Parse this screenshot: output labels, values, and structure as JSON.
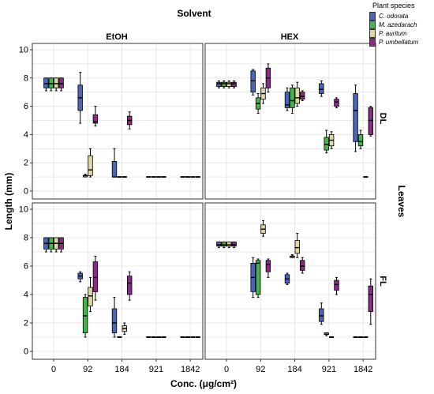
{
  "chart_data": {
    "type": "boxplot",
    "title": "Solvent",
    "xlabel": "Conc. (μg/cm²)",
    "ylabel": "Length (mm)",
    "row_group_label": "Leaves",
    "columns": [
      "EtOH",
      "HEX"
    ],
    "rows": [
      "DL",
      "FL"
    ],
    "categories": [
      "0",
      "92",
      "184",
      "921",
      "1842"
    ],
    "ylim": [
      0,
      10
    ],
    "yticks": [
      0,
      2,
      4,
      6,
      8,
      10
    ],
    "grid": true,
    "legend": {
      "title": "Plant species",
      "position": "top-right",
      "entries": [
        {
          "name": "C. odorata",
          "color": "#4b64b4"
        },
        {
          "name": "M. azedarach",
          "color": "#45b54a"
        },
        {
          "name": "P. auritum",
          "color": "#ded7a6"
        },
        {
          "name": "P. umbellatum",
          "color": "#892a85"
        }
      ]
    },
    "panels": [
      {
        "row": "DL",
        "column": "EtOH",
        "boxes": [
          {
            "category": "0",
            "series": "C. odorata",
            "min": 7.1,
            "q1": 7.3,
            "median": 7.6,
            "q3": 8.0,
            "max": 8.0
          },
          {
            "category": "0",
            "series": "M. azedarach",
            "min": 7.1,
            "q1": 7.3,
            "median": 7.6,
            "q3": 8.0,
            "max": 8.0
          },
          {
            "category": "0",
            "series": "P. auritum",
            "min": 7.1,
            "q1": 7.3,
            "median": 7.6,
            "q3": 8.0,
            "max": 8.0
          },
          {
            "category": "0",
            "series": "P. umbellatum",
            "min": 7.1,
            "q1": 7.3,
            "median": 7.6,
            "q3": 8.0,
            "max": 8.0
          },
          {
            "category": "92",
            "series": "C. odorata",
            "min": 4.8,
            "q1": 5.7,
            "median": 6.6,
            "q3": 7.5,
            "max": 8.4
          },
          {
            "category": "92",
            "series": "M. azedarach",
            "min": 1.0,
            "q1": 1.0,
            "median": 1.1,
            "q3": 1.1,
            "max": 1.2
          },
          {
            "category": "92",
            "series": "P. auritum",
            "min": 1.0,
            "q1": 1.1,
            "median": 1.5,
            "q3": 2.5,
            "max": 3.0
          },
          {
            "category": "92",
            "series": "P. umbellatum",
            "min": 4.6,
            "q1": 4.8,
            "median": 4.9,
            "q3": 5.4,
            "max": 6.0
          },
          {
            "category": "184",
            "series": "C. odorata",
            "min": 1.0,
            "q1": 1.0,
            "median": 1.0,
            "q3": 2.1,
            "max": 3.0
          },
          {
            "category": "184",
            "series": "M. azedarach",
            "min": 1.0,
            "q1": 1.0,
            "median": 1.0,
            "q3": 1.0,
            "max": 1.0
          },
          {
            "category": "184",
            "series": "P. auritum",
            "min": 1.0,
            "q1": 1.0,
            "median": 1.0,
            "q3": 1.0,
            "max": 1.0
          },
          {
            "category": "184",
            "series": "P. umbellatum",
            "min": 4.4,
            "q1": 4.7,
            "median": 5.0,
            "q3": 5.3,
            "max": 5.6
          },
          {
            "category": "921",
            "series": "C. odorata",
            "min": 1.0,
            "q1": 1.0,
            "median": 1.0,
            "q3": 1.0,
            "max": 1.0
          },
          {
            "category": "921",
            "series": "M. azedarach",
            "min": 1.0,
            "q1": 1.0,
            "median": 1.0,
            "q3": 1.0,
            "max": 1.0
          },
          {
            "category": "921",
            "series": "P. auritum",
            "min": 1.0,
            "q1": 1.0,
            "median": 1.0,
            "q3": 1.0,
            "max": 1.0
          },
          {
            "category": "921",
            "series": "P. umbellatum",
            "min": 1.0,
            "q1": 1.0,
            "median": 1.0,
            "q3": 1.0,
            "max": 1.0
          },
          {
            "category": "1842",
            "series": "C. odorata",
            "min": 1.0,
            "q1": 1.0,
            "median": 1.0,
            "q3": 1.0,
            "max": 1.0
          },
          {
            "category": "1842",
            "series": "M. azedarach",
            "min": 1.0,
            "q1": 1.0,
            "median": 1.0,
            "q3": 1.0,
            "max": 1.0
          },
          {
            "category": "1842",
            "series": "P. auritum",
            "min": 1.0,
            "q1": 1.0,
            "median": 1.0,
            "q3": 1.0,
            "max": 1.0
          },
          {
            "category": "1842",
            "series": "P. umbellatum",
            "min": 1.0,
            "q1": 1.0,
            "median": 1.0,
            "q3": 1.0,
            "max": 1.0
          }
        ]
      },
      {
        "row": "DL",
        "column": "HEX",
        "boxes": [
          {
            "category": "0",
            "series": "C. odorata",
            "min": 7.3,
            "q1": 7.4,
            "median": 7.6,
            "q3": 7.7,
            "max": 7.8
          },
          {
            "category": "0",
            "series": "M. azedarach",
            "min": 7.3,
            "q1": 7.4,
            "median": 7.6,
            "q3": 7.7,
            "max": 7.8
          },
          {
            "category": "0",
            "series": "P. auritum",
            "min": 7.3,
            "q1": 7.4,
            "median": 7.6,
            "q3": 7.7,
            "max": 7.8
          },
          {
            "category": "0",
            "series": "P. umbellatum",
            "min": 7.3,
            "q1": 7.4,
            "median": 7.6,
            "q3": 7.7,
            "max": 7.8
          },
          {
            "category": "92",
            "series": "C. odorata",
            "min": 6.8,
            "q1": 7.0,
            "median": 7.8,
            "q3": 8.5,
            "max": 8.6
          },
          {
            "category": "92",
            "series": "M. azedarach",
            "min": 5.5,
            "q1": 5.8,
            "median": 6.2,
            "q3": 6.6,
            "max": 6.9
          },
          {
            "category": "92",
            "series": "P. auritum",
            "min": 6.2,
            "q1": 6.5,
            "median": 6.9,
            "q3": 7.3,
            "max": 7.6
          },
          {
            "category": "92",
            "series": "P. umbellatum",
            "min": 7.0,
            "q1": 7.3,
            "median": 8.0,
            "q3": 8.7,
            "max": 9.0
          },
          {
            "category": "184",
            "series": "C. odorata",
            "min": 5.7,
            "q1": 5.9,
            "median": 6.1,
            "q3": 7.0,
            "max": 7.3
          },
          {
            "category": "184",
            "series": "M. azedarach",
            "min": 5.5,
            "q1": 5.9,
            "median": 6.4,
            "q3": 7.3,
            "max": 7.5
          },
          {
            "category": "184",
            "series": "P. auritum",
            "min": 6.0,
            "q1": 6.2,
            "median": 6.6,
            "q3": 7.3,
            "max": 7.7
          },
          {
            "category": "184",
            "series": "P. umbellatum",
            "min": 6.4,
            "q1": 6.5,
            "median": 6.7,
            "q3": 7.0,
            "max": 7.1
          },
          {
            "category": "921",
            "series": "C. odorata",
            "min": 6.7,
            "q1": 6.9,
            "median": 7.2,
            "q3": 7.6,
            "max": 7.8
          },
          {
            "category": "921",
            "series": "M. azedarach",
            "min": 2.7,
            "q1": 2.9,
            "median": 3.3,
            "q3": 3.8,
            "max": 4.3
          },
          {
            "category": "921",
            "series": "P. auritum",
            "min": 3.0,
            "q1": 3.2,
            "median": 3.6,
            "q3": 4.0,
            "max": 4.2
          },
          {
            "category": "921",
            "series": "P. umbellatum",
            "min": 5.9,
            "q1": 6.0,
            "median": 6.3,
            "q3": 6.5,
            "max": 6.6
          },
          {
            "category": "1842",
            "series": "C. odorata",
            "min": 2.8,
            "q1": 3.5,
            "median": 5.7,
            "q3": 6.9,
            "max": 7.5
          },
          {
            "category": "1842",
            "series": "M. azedarach",
            "min": 3.0,
            "q1": 3.2,
            "median": 3.5,
            "q3": 4.0,
            "max": 4.3
          },
          {
            "category": "1842",
            "series": "P. auritum",
            "min": 1.0,
            "q1": 1.0,
            "median": 1.0,
            "q3": 1.0,
            "max": 1.0
          },
          {
            "category": "1842",
            "series": "P. umbellatum",
            "min": 3.9,
            "q1": 4.0,
            "median": 5.0,
            "q3": 5.9,
            "max": 6.0
          }
        ]
      },
      {
        "row": "FL",
        "column": "EtOH",
        "boxes": [
          {
            "category": "0",
            "series": "C. odorata",
            "min": 7.0,
            "q1": 7.2,
            "median": 7.6,
            "q3": 8.0,
            "max": 8.0
          },
          {
            "category": "0",
            "series": "M. azedarach",
            "min": 7.0,
            "q1": 7.2,
            "median": 7.6,
            "q3": 8.0,
            "max": 8.0
          },
          {
            "category": "0",
            "series": "P. auritum",
            "min": 7.0,
            "q1": 7.2,
            "median": 7.6,
            "q3": 8.0,
            "max": 8.0
          },
          {
            "category": "0",
            "series": "P. umbellatum",
            "min": 7.0,
            "q1": 7.2,
            "median": 7.6,
            "q3": 8.0,
            "max": 8.0
          },
          {
            "category": "92",
            "series": "C. odorata",
            "min": 4.9,
            "q1": 5.1,
            "median": 5.3,
            "q3": 5.5,
            "max": 5.6
          },
          {
            "category": "92",
            "series": "M. azedarach",
            "min": 1.0,
            "q1": 1.3,
            "median": 2.5,
            "q3": 3.8,
            "max": 4.0
          },
          {
            "category": "92",
            "series": "P. auritum",
            "min": 2.8,
            "q1": 3.2,
            "median": 3.9,
            "q3": 4.5,
            "max": 5.2
          },
          {
            "category": "92",
            "series": "P. umbellatum",
            "min": 3.6,
            "q1": 4.2,
            "median": 5.2,
            "q3": 6.3,
            "max": 6.7
          },
          {
            "category": "184",
            "series": "C. odorata",
            "min": 1.0,
            "q1": 1.3,
            "median": 2.0,
            "q3": 3.0,
            "max": 3.8
          },
          {
            "category": "184",
            "series": "M. azedarach",
            "min": 1.0,
            "q1": 1.0,
            "median": 1.0,
            "q3": 1.0,
            "max": 1.0
          },
          {
            "category": "184",
            "series": "P. auritum",
            "min": 1.2,
            "q1": 1.4,
            "median": 1.6,
            "q3": 1.8,
            "max": 2.0
          },
          {
            "category": "184",
            "series": "P. umbellatum",
            "min": 3.6,
            "q1": 4.0,
            "median": 4.8,
            "q3": 5.3,
            "max": 5.6
          },
          {
            "category": "921",
            "series": "C. odorata",
            "min": 1.0,
            "q1": 1.0,
            "median": 1.0,
            "q3": 1.0,
            "max": 1.0
          },
          {
            "category": "921",
            "series": "M. azedarach",
            "min": 1.0,
            "q1": 1.0,
            "median": 1.0,
            "q3": 1.0,
            "max": 1.0
          },
          {
            "category": "921",
            "series": "P. auritum",
            "min": 1.0,
            "q1": 1.0,
            "median": 1.0,
            "q3": 1.0,
            "max": 1.0
          },
          {
            "category": "921",
            "series": "P. umbellatum",
            "min": 1.0,
            "q1": 1.0,
            "median": 1.0,
            "q3": 1.0,
            "max": 1.0
          },
          {
            "category": "1842",
            "series": "C. odorata",
            "min": 1.0,
            "q1": 1.0,
            "median": 1.0,
            "q3": 1.0,
            "max": 1.0
          },
          {
            "category": "1842",
            "series": "M. azedarach",
            "min": 1.0,
            "q1": 1.0,
            "median": 1.0,
            "q3": 1.0,
            "max": 1.0
          },
          {
            "category": "1842",
            "series": "P. auritum",
            "min": 1.0,
            "q1": 1.0,
            "median": 1.0,
            "q3": 1.0,
            "max": 1.0
          },
          {
            "category": "1842",
            "series": "P. umbellatum",
            "min": 1.0,
            "q1": 1.0,
            "median": 1.0,
            "q3": 1.0,
            "max": 1.0
          }
        ]
      },
      {
        "row": "FL",
        "column": "HEX",
        "boxes": [
          {
            "category": "0",
            "series": "C. odorata",
            "min": 7.3,
            "q1": 7.4,
            "median": 7.5,
            "q3": 7.7,
            "max": 7.7
          },
          {
            "category": "0",
            "series": "M. azedarach",
            "min": 7.3,
            "q1": 7.4,
            "median": 7.5,
            "q3": 7.7,
            "max": 7.7
          },
          {
            "category": "0",
            "series": "P. auritum",
            "min": 7.3,
            "q1": 7.4,
            "median": 7.5,
            "q3": 7.7,
            "max": 7.7
          },
          {
            "category": "0",
            "series": "P. umbellatum",
            "min": 7.3,
            "q1": 7.4,
            "median": 7.5,
            "q3": 7.7,
            "max": 7.7
          },
          {
            "category": "92",
            "series": "C. odorata",
            "min": 3.8,
            "q1": 4.2,
            "median": 5.2,
            "q3": 6.2,
            "max": 6.6
          },
          {
            "category": "92",
            "series": "M. azedarach",
            "min": 3.8,
            "q1": 4.0,
            "median": 6.2,
            "q3": 6.4,
            "max": 6.5
          },
          {
            "category": "92",
            "series": "P. auritum",
            "min": 8.1,
            "q1": 8.3,
            "median": 8.6,
            "q3": 8.9,
            "max": 9.2
          },
          {
            "category": "92",
            "series": "P. umbellatum",
            "min": 5.2,
            "q1": 5.6,
            "median": 6.1,
            "q3": 6.4,
            "max": 6.5
          },
          {
            "category": "184",
            "series": "C. odorata",
            "min": 4.7,
            "q1": 4.8,
            "median": 5.1,
            "q3": 5.4,
            "max": 5.5
          },
          {
            "category": "184",
            "series": "M. azedarach",
            "min": 6.6,
            "q1": 6.6,
            "median": 6.7,
            "q3": 6.7,
            "max": 6.8
          },
          {
            "category": "184",
            "series": "P. auritum",
            "min": 6.6,
            "q1": 6.9,
            "median": 7.3,
            "q3": 7.8,
            "max": 8.3
          },
          {
            "category": "184",
            "series": "P. umbellatum",
            "min": 5.5,
            "q1": 5.7,
            "median": 6.0,
            "q3": 6.4,
            "max": 6.6
          },
          {
            "category": "921",
            "series": "C. odorata",
            "min": 1.9,
            "q1": 2.1,
            "median": 2.5,
            "q3": 3.0,
            "max": 3.4
          },
          {
            "category": "921",
            "series": "M. azedarach",
            "min": 1.1,
            "q1": 1.2,
            "median": 1.2,
            "q3": 1.3,
            "max": 1.3
          },
          {
            "category": "921",
            "series": "P. auritum",
            "min": 1.0,
            "q1": 1.0,
            "median": 1.0,
            "q3": 1.0,
            "max": 1.0
          },
          {
            "category": "921",
            "series": "P. umbellatum",
            "min": 4.0,
            "q1": 4.3,
            "median": 4.7,
            "q3": 5.0,
            "max": 5.2
          },
          {
            "category": "1842",
            "series": "C. odorata",
            "min": 1.0,
            "q1": 1.0,
            "median": 1.0,
            "q3": 1.0,
            "max": 1.0
          },
          {
            "category": "1842",
            "series": "M. azedarach",
            "min": 1.0,
            "q1": 1.0,
            "median": 1.0,
            "q3": 1.0,
            "max": 1.0
          },
          {
            "category": "1842",
            "series": "P. auritum",
            "min": 1.0,
            "q1": 1.0,
            "median": 1.0,
            "q3": 1.0,
            "max": 1.0
          },
          {
            "category": "1842",
            "series": "P. umbellatum",
            "min": 1.9,
            "q1": 2.8,
            "median": 4.0,
            "q3": 4.6,
            "max": 5.1
          }
        ]
      }
    ]
  }
}
